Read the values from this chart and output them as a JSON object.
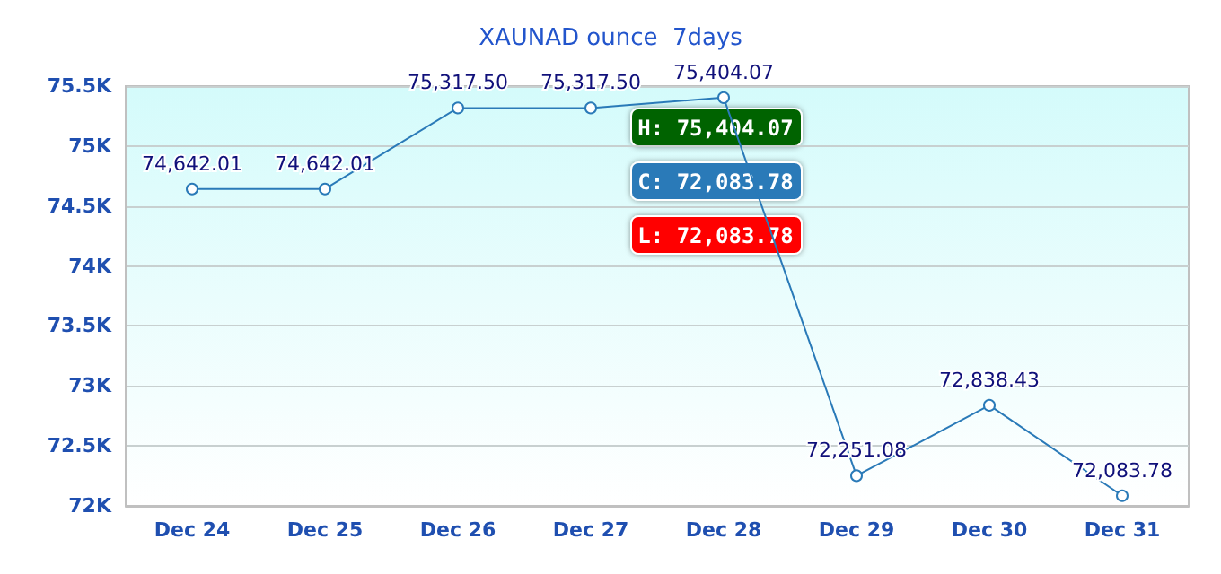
{
  "chart_data": {
    "type": "line",
    "title": "XAUNAD ounce  7days",
    "categories": [
      "Dec 24",
      "Dec 25",
      "Dec 26",
      "Dec 27",
      "Dec 28",
      "Dec 29",
      "Dec 30",
      "Dec 31"
    ],
    "values": [
      74642.01,
      74642.01,
      75317.5,
      75317.5,
      75404.07,
      72251.08,
      72838.43,
      72083.78
    ],
    "value_labels": [
      "74,642.01",
      "74,642.01",
      "75,317.50",
      "75,317.50",
      "75,404.07",
      "72,251.08",
      "72,838.43",
      "72,083.78"
    ],
    "color": "#2a7ab8",
    "ylim": [
      72000,
      75500
    ],
    "yticks": [
      {
        "value": 72000,
        "label": "72K"
      },
      {
        "value": 72500,
        "label": "72.5K"
      },
      {
        "value": 73000,
        "label": "73K"
      },
      {
        "value": 73500,
        "label": "73.5K"
      },
      {
        "value": 74000,
        "label": "74K"
      },
      {
        "value": 74500,
        "label": "74.5K"
      },
      {
        "value": 75000,
        "label": "75K"
      },
      {
        "value": 75500,
        "label": "75.5K"
      }
    ],
    "grid": "y",
    "marker": "circle",
    "line_style": "solid",
    "annotations": [
      "H: 75,404.07",
      "C: 72,083.78",
      "L: 72,083.78"
    ]
  }
}
